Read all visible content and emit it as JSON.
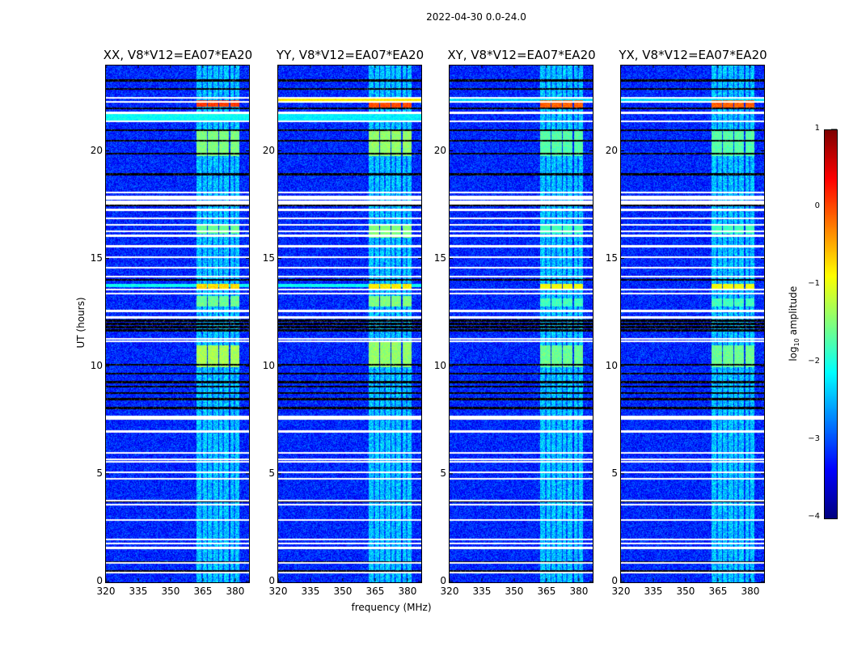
{
  "suptitle": "2022-04-30 0.0-24.0",
  "chart_data": {
    "type": "heatmap",
    "xlabel": "frequency (MHz)",
    "ylabel": "UT (hours)",
    "xlim": [
      320,
      386.4
    ],
    "ylim": [
      0,
      24
    ],
    "xticks": [
      "320",
      "335",
      "350",
      "365",
      "380"
    ],
    "xtick_values": [
      320,
      335,
      350,
      365,
      380
    ],
    "yticks": [
      "0",
      "5",
      "10",
      "15",
      "20"
    ],
    "ytick_values": [
      0,
      5,
      10,
      15,
      20
    ],
    "colorbar": {
      "label": "log10 amplitude",
      "label_main": "log",
      "label_sub": "10",
      "label_rest": " amplitude",
      "range": [
        -4,
        1
      ],
      "ticks": [
        "1",
        "0",
        "−1",
        "−2",
        "−3",
        "−4"
      ],
      "tick_values": [
        1,
        0,
        -1,
        -2,
        -3,
        -4
      ],
      "colormap": "jet"
    },
    "background_level": -3.2,
    "channel_bands_mhz": [
      [
        362,
        367
      ],
      [
        367.2,
        372
      ],
      [
        372.5,
        377
      ],
      [
        377.7,
        382
      ]
    ],
    "channel_band_level": -2.4,
    "flagged_hours": [
      0.45,
      0.9,
      1.6,
      1.8,
      2.0,
      2.9,
      3.6,
      3.8,
      4.8,
      5.1,
      5.6,
      5.7,
      6.0,
      7.0,
      7.6,
      7.7,
      11.2,
      11.3,
      12.3,
      12.6,
      13.4,
      13.6,
      14.2,
      14.6,
      15.1,
      15.6,
      16.1,
      16.3,
      16.6,
      16.9,
      17.3,
      17.6,
      17.7,
      17.8,
      17.9,
      18.1,
      21.4,
      21.8,
      22.3,
      22.5
    ],
    "dropout_hours": [
      0.5,
      0.95,
      3.75,
      8.1,
      8.5,
      8.8,
      9.1,
      9.3,
      9.7,
      10.1,
      11.7,
      11.85,
      12.0,
      12.15,
      14.05,
      17.5,
      18.95,
      19.9,
      20.5,
      21.0,
      22.0,
      22.9,
      23.3
    ],
    "panels": [
      {
        "title": "XX, V8*V12=EA07*EA20",
        "events": [
          {
            "t": [
              22.1,
              22.4
            ],
            "level": 0.1,
            "scope": "bands"
          },
          {
            "t": [
              13.6,
              13.85
            ],
            "level": -0.7,
            "scope": "bands"
          },
          {
            "t": [
              21.45,
              21.75
            ],
            "level": -2.1,
            "scope": "all"
          },
          {
            "t": [
              13.7,
              13.85
            ],
            "level": -2.1,
            "scope": "all"
          },
          {
            "t": [
              7.55,
              7.75
            ],
            "level": -2.5,
            "scope": "all"
          },
          {
            "t": [
              10.0,
              11.0
            ],
            "level": -1.3,
            "scope": "bands"
          },
          {
            "t": [
              19.8,
              21.0
            ],
            "level": -1.5,
            "scope": "bands"
          },
          {
            "t": [
              16.2,
              16.6
            ],
            "level": -1.6,
            "scope": "bands"
          },
          {
            "t": [
              12.8,
              13.3
            ],
            "level": -1.6,
            "scope": "bands"
          }
        ]
      },
      {
        "title": "YY, V8*V12=EA07*EA20",
        "events": [
          {
            "t": [
              22.35,
              22.55
            ],
            "level": -0.8,
            "scope": "all"
          },
          {
            "t": [
              22.05,
              22.35
            ],
            "level": 0.0,
            "scope": "bands"
          },
          {
            "t": [
              13.6,
              13.85
            ],
            "level": -0.8,
            "scope": "bands"
          },
          {
            "t": [
              21.45,
              21.75
            ],
            "level": -2.2,
            "scope": "all"
          },
          {
            "t": [
              13.7,
              13.85
            ],
            "level": -2.1,
            "scope": "all"
          },
          {
            "t": [
              7.55,
              7.75
            ],
            "level": -2.5,
            "scope": "all"
          },
          {
            "t": [
              10.0,
              11.2
            ],
            "level": -1.4,
            "scope": "bands"
          },
          {
            "t": [
              19.8,
              21.0
            ],
            "level": -1.4,
            "scope": "bands"
          },
          {
            "t": [
              16.0,
              16.6
            ],
            "level": -1.5,
            "scope": "bands"
          },
          {
            "t": [
              12.8,
              13.3
            ],
            "level": -1.5,
            "scope": "bands"
          }
        ]
      },
      {
        "title": "XY, V8*V12=EA07*EA20",
        "events": [
          {
            "t": [
              22.05,
              22.4
            ],
            "level": -0.1,
            "scope": "bands"
          },
          {
            "t": [
              13.6,
              13.85
            ],
            "level": -0.9,
            "scope": "bands"
          },
          {
            "t": [
              22.3,
              22.45
            ],
            "level": -2.3,
            "scope": "all"
          },
          {
            "t": [
              10.0,
              11.0
            ],
            "level": -1.6,
            "scope": "bands"
          },
          {
            "t": [
              19.8,
              21.0
            ],
            "level": -1.7,
            "scope": "bands"
          },
          {
            "t": [
              16.2,
              16.6
            ],
            "level": -1.8,
            "scope": "bands"
          },
          {
            "t": [
              12.8,
              13.2
            ],
            "level": -1.8,
            "scope": "bands"
          }
        ]
      },
      {
        "title": "YX, V8*V12=EA07*EA20",
        "events": [
          {
            "t": [
              22.05,
              22.4
            ],
            "level": -0.1,
            "scope": "bands"
          },
          {
            "t": [
              13.6,
              13.85
            ],
            "level": -0.9,
            "scope": "bands"
          },
          {
            "t": [
              22.3,
              22.45
            ],
            "level": -2.3,
            "scope": "all"
          },
          {
            "t": [
              10.0,
              11.0
            ],
            "level": -1.6,
            "scope": "bands"
          },
          {
            "t": [
              19.8,
              21.0
            ],
            "level": -1.7,
            "scope": "bands"
          },
          {
            "t": [
              16.2,
              16.6
            ],
            "level": -1.8,
            "scope": "bands"
          },
          {
            "t": [
              12.8,
              13.2
            ],
            "level": -1.8,
            "scope": "bands"
          }
        ]
      }
    ]
  }
}
